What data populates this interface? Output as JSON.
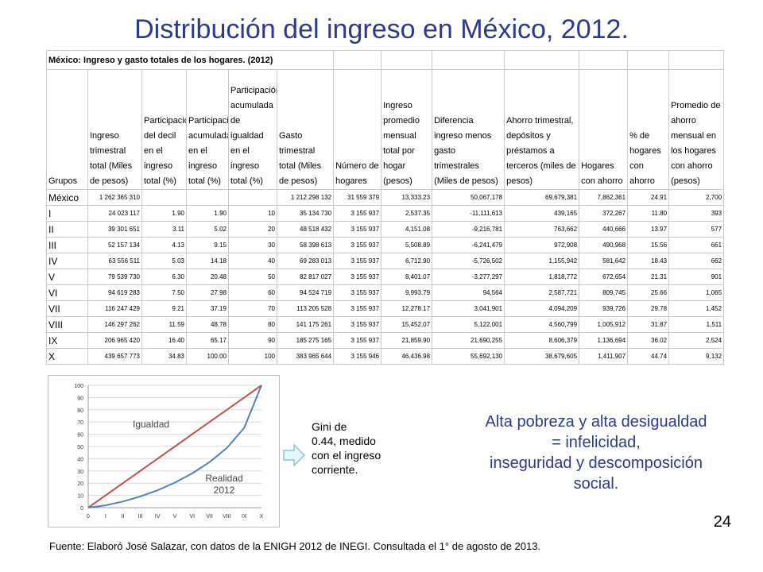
{
  "slide": {
    "title": "Distribución del ingreso en México, 2012.",
    "number": "24",
    "footer": "Fuente: Elaboró José Salazar, con datos de la ENIGH 2012 de INEGI. Consultada el 1° de agosto de 2013.",
    "gini_text": "Gini de\n0.44, medido\ncon el ingreso\ncorriente.",
    "message": "Alta pobreza y alta desigualdad\n= infelicidad,\ninseguridad y descomposición\nsocial."
  },
  "table": {
    "caption": "México: Ingreso y gasto totales de los hogares. (2012)",
    "headers": [
      "Grupos",
      "Ingreso trimestral total (Miles de pesos)",
      "Participación del decil en el ingreso total (%)",
      "Participación acumulada en el ingreso total (%)",
      "Participación acumulada de igualdad en el ingreso total (%)",
      "Gasto trimestral total (Miles de pesos)",
      "Número de hogares",
      "Ingreso promedio mensual total por hogar (pesos)",
      "Diferencia ingreso menos gasto trimestrales (Miles de pesos)",
      "Ahorro trimestral, depósitos y préstamos a terceros (miles de pesos)",
      "Hogares con ahorro",
      "% de hogares con ahorro",
      "Promedio de ahorro mensual en los hogares con ahorro (pesos)"
    ],
    "rows": [
      [
        "México",
        "1 262 365 310",
        "",
        "",
        "",
        "1 212 298 132",
        "31 559 379",
        "13,333.23",
        "50,067,178",
        "69,679,381",
        "7,862,361",
        "24.91",
        "2,700"
      ],
      [
        "I",
        "24 023 117",
        "1.90",
        "1.90",
        "10",
        "35 134 730",
        "3 155 937",
        "2,537.35",
        "-11,111,613",
        "439,165",
        "372,267",
        "11.80",
        "393"
      ],
      [
        "II",
        "39 301 651",
        "3.11",
        "5.02",
        "20",
        "48 518 432",
        "3 155 937",
        "4,151.08",
        "-9,216,781",
        "763,662",
        "440,666",
        "13.97",
        "577"
      ],
      [
        "III",
        "52 157 134",
        "4.13",
        "9.15",
        "30",
        "58 398 613",
        "3 155 937",
        "5,508.89",
        "-6,241,479",
        "972,908",
        "490,968",
        "15.56",
        "661"
      ],
      [
        "IV",
        "63 556 511",
        "5.03",
        "14.18",
        "40",
        "69 283 013",
        "3 155 937",
        "6,712.90",
        "-5,726,502",
        "1,155,942",
        "581,642",
        "18.43",
        "662"
      ],
      [
        "V",
        "79 539 730",
        "6.30",
        "20.48",
        "50",
        "82 817 027",
        "3 155 937",
        "8,401.07",
        "-3,277,297",
        "1,818,772",
        "672,654",
        "21.31",
        "901"
      ],
      [
        "VI",
        "94 619 283",
        "7.50",
        "27.98",
        "60",
        "94 524 719",
        "3 155 937",
        "9,993.79",
        "94,564",
        "2,587,721",
        "809,745",
        "25.66",
        "1,065"
      ],
      [
        "VII",
        "116 247 429",
        "9.21",
        "37.19",
        "70",
        "113 205 528",
        "3 155 937",
        "12,278.17",
        "3,041,901",
        "4,094,209",
        "939,726",
        "29.78",
        "1,452"
      ],
      [
        "VIII",
        "146 297 262",
        "11.59",
        "48.78",
        "80",
        "141 175 261",
        "3 155 937",
        "15,452.07",
        "5,122,001",
        "4,560,799",
        "1,005,912",
        "31.87",
        "1,511"
      ],
      [
        "IX",
        "206 965 420",
        "16.40",
        "65.17",
        "90",
        "185 275 165",
        "3 155 937",
        "21,859.90",
        "21,690,255",
        "8,606,379",
        "1,136,694",
        "36.02",
        "2,524"
      ],
      [
        "X",
        "439 657 773",
        "34.83",
        "100.00",
        "100",
        "383 965 644",
        "3 155 946",
        "46,436.98",
        "55,692,130",
        "38,679,605",
        "1,411,907",
        "44.74",
        "9,132"
      ]
    ]
  },
  "chart_data": {
    "type": "line",
    "title": "",
    "xlabel": "",
    "ylabel": "",
    "x": [
      "0",
      "I",
      "II",
      "III",
      "IV",
      "V",
      "VI",
      "VII",
      "VIII",
      "IX",
      "X"
    ],
    "yticks": [
      0,
      10,
      20,
      30,
      40,
      50,
      60,
      70,
      80,
      90,
      100
    ],
    "ylim": [
      0,
      100
    ],
    "grid": true,
    "series": [
      {
        "name": "Igualdad",
        "color": "#c0504d",
        "values": [
          0,
          10,
          20,
          30,
          40,
          50,
          60,
          70,
          80,
          90,
          100
        ]
      },
      {
        "name": "Realidad 2012",
        "color": "#4f81bd",
        "values": [
          0,
          1.9,
          5.02,
          9.15,
          14.18,
          20.48,
          27.98,
          37.19,
          48.78,
          65.17,
          100.0
        ]
      }
    ]
  },
  "colors": {
    "title": "#2b3a8c",
    "igualdad": "#c0504d",
    "realidad": "#4f81bd",
    "arrow": "#8fd3de"
  },
  "icons": {
    "arrow": "right-arrow-icon"
  }
}
